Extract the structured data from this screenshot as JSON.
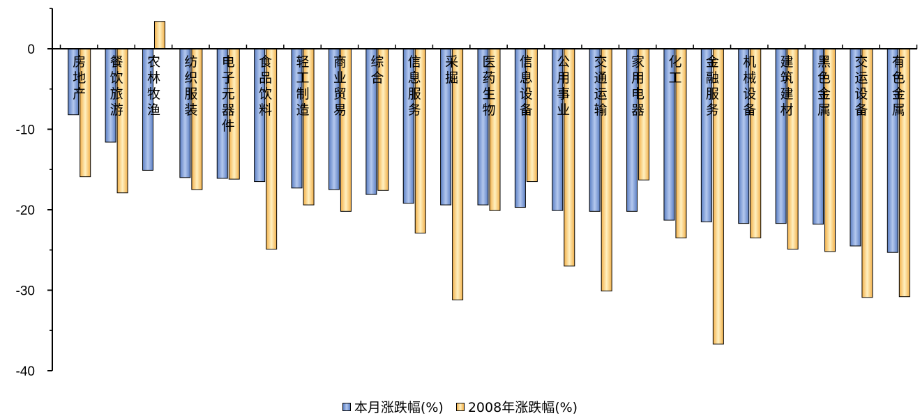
{
  "chart_data": {
    "type": "bar",
    "title": "",
    "xlabel": "",
    "ylabel": "",
    "ylim": [
      -40,
      5
    ],
    "yticks": [
      0,
      -10,
      -20,
      -30,
      -40
    ],
    "legend_position": "bottom",
    "grid": false,
    "categories": [
      "房地产",
      "餐饮旅游",
      "农林牧渔",
      "纺织服装",
      "电子元器件",
      "食品饮料",
      "轻工制造",
      "商业贸易",
      "综合",
      "信息服务",
      "采掘",
      "医药生物",
      "信息设备",
      "公用事业",
      "交通运输",
      "家用电器",
      "化工",
      "金融服务",
      "机械设备",
      "建筑建材",
      "黑色金属",
      "交运设备",
      "有色金属"
    ],
    "series": [
      {
        "name": "本月涨跌幅(%)",
        "color": "#8EA9DB",
        "values": [
          -8.2,
          -11.6,
          -15.1,
          -16.0,
          -16.1,
          -16.5,
          -17.3,
          -17.5,
          -18.1,
          -19.2,
          -19.4,
          -19.4,
          -19.7,
          -20.1,
          -20.2,
          -20.2,
          -21.3,
          -21.5,
          -21.7,
          -21.7,
          -21.8,
          -24.5,
          -25.3
        ]
      },
      {
        "name": "2008年涨跌幅(%)",
        "color": "#FFD480",
        "values": [
          -15.9,
          -17.9,
          3.4,
          -17.5,
          -16.2,
          -24.9,
          -19.4,
          -20.2,
          -17.6,
          -22.9,
          -31.2,
          -20.1,
          -16.5,
          -27.0,
          -30.1,
          -16.3,
          -23.5,
          -36.7,
          -23.5,
          -24.9,
          -25.2,
          -30.9,
          -30.8
        ]
      }
    ]
  }
}
